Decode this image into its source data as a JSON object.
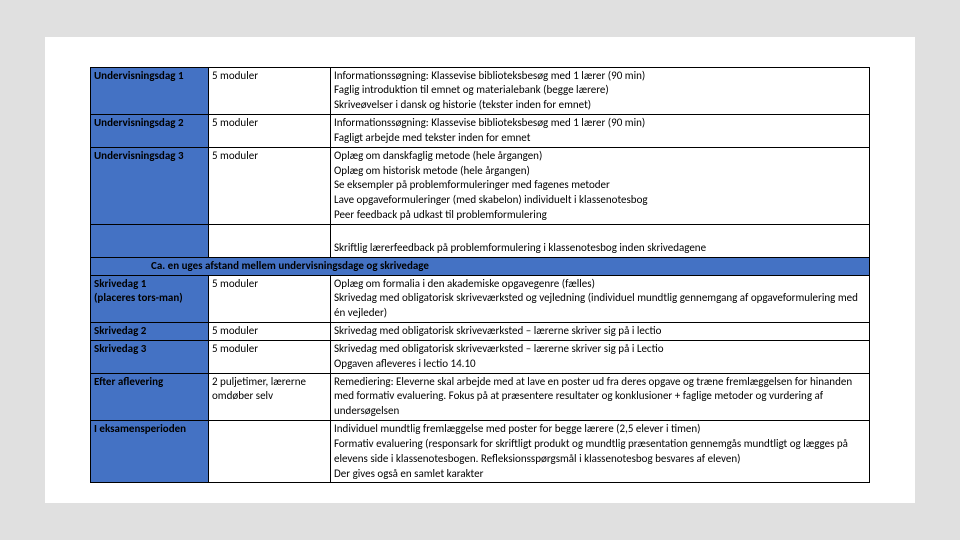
{
  "colors": {
    "header_bg": "#4472c4",
    "border": "#000000",
    "page_bg": "#ffffff",
    "canvas_bg": "#e0e0e0"
  },
  "rows1": [
    {
      "c1": "Undervisningsdag 1",
      "c2": "5 moduler",
      "c3": "Informationssøgning: Klassevise biblioteksbesøg med 1 lærer (90 min)\nFaglig introduktion til emnet og materialebank (begge lærere)\nSkriveøvelser i dansk og historie (tekster inden for emnet)"
    },
    {
      "c1": "Undervisningsdag 2",
      "c2": "5 moduler",
      "c3": "Informationssøgning: Klassevise biblioteksbesøg med 1 lærer (90 min)\nFagligt arbejde med tekster inden for emnet"
    },
    {
      "c1": "Undervisningsdag 3",
      "c2": "5 moduler",
      "c3": "Oplæg om danskfaglig metode (hele årgangen)\nOplæg om historisk metode (hele årgangen)\nSe eksempler på problemformuleringer med fagenes metoder\nLave opgaveformuleringer (med skabelon) individuelt i klassenotesbog\nPeer feedback på udkast til problemformulering"
    }
  ],
  "gap_note": "Skriftlig lærerfeedback på problemformulering i klassenotesbog inden skrivedagene",
  "mid_header": "Ca. en uges afstand mellem undervisningsdage og skrivedage",
  "rows2": [
    {
      "c1": "Skrivedag 1\n(placeres tors-man)",
      "c2": "5 moduler",
      "c3": "Oplæg om formalia i den akademiske opgavegenre (fælles)\nSkrivedag med obligatorisk skriveværksted og vejledning (individuel mundtlig gennemgang af opgaveformulering med én vejleder)"
    },
    {
      "c1": "Skrivedag 2",
      "c2": "5 moduler",
      "c3": "Skrivedag med obligatorisk skriveværksted – lærerne skriver sig på i lectio"
    },
    {
      "c1": "Skrivedag 3",
      "c2": "5 moduler",
      "c3": "Skrivedag med obligatorisk skriveværksted – lærerne skriver sig på i Lectio\nOpgaven afleveres i lectio 14.10"
    },
    {
      "c1": "Efter aflevering",
      "c2": "2 puljetimer, lærerne omdøber selv",
      "c3": "Remediering: Eleverne skal arbejde med at lave en poster ud fra deres opgave og træne fremlæggelsen for hinanden med formativ evaluering. Fokus på at præsentere resultater og konklusioner + faglige metoder og vurdering af undersøgelsen"
    },
    {
      "c1": "I eksamensperioden",
      "c2": "",
      "c3": "Individuel mundtlig fremlæggelse med poster for begge lærere  (2,5 elever i timen)\nFormativ evaluering (responsark for skriftligt produkt og mundtlig præsentation gennemgås mundtligt og lægges på elevens side i klassenotesbogen. Refleksionsspørgsmål i klassenotesbog besvares af eleven)\n Der gives også en samlet karakter"
    }
  ]
}
